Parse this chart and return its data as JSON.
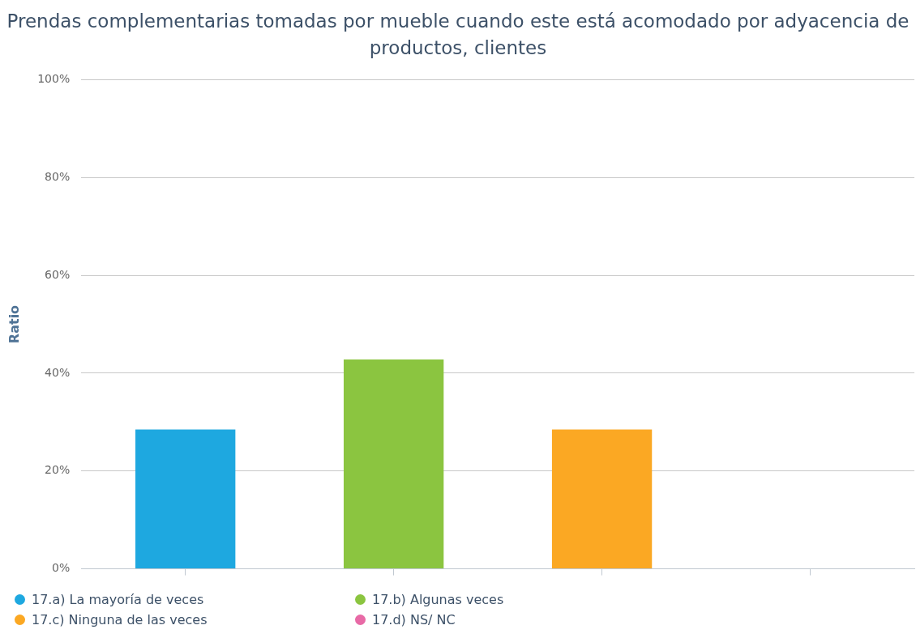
{
  "chart_data": {
    "type": "bar",
    "title": "Prendas complementarias tomadas por mueble cuando este está acomodado por adyacencia de productos, clientes",
    "ylabel": "Ratio",
    "categories": [
      null,
      null,
      null,
      null
    ],
    "series": [
      {
        "name": "17.a) La mayoría de veces",
        "color": "#1ea8e0",
        "values": [
          28.5,
          null,
          null,
          null
        ]
      },
      {
        "name": "17.b) Algunas veces",
        "color": "#8bc540",
        "values": [
          null,
          42.8,
          null,
          null
        ]
      },
      {
        "name": "17.c) Ninguna de las veces",
        "color": "#fba823",
        "values": [
          null,
          null,
          28.5,
          null
        ]
      },
      {
        "name": "17.d) NS/ NC",
        "color": "#e86aa6",
        "values": [
          null,
          null,
          null,
          0
        ]
      }
    ],
    "ylim": [
      0,
      100
    ],
    "yticks": [
      {
        "value": 0,
        "label": "0%"
      },
      {
        "value": 20,
        "label": "20%"
      },
      {
        "value": 40,
        "label": "40%"
      },
      {
        "value": 60,
        "label": "60%"
      },
      {
        "value": 80,
        "label": "80%"
      },
      {
        "value": 100,
        "label": "100%"
      }
    ],
    "grid": "y",
    "legend": "bottom"
  }
}
